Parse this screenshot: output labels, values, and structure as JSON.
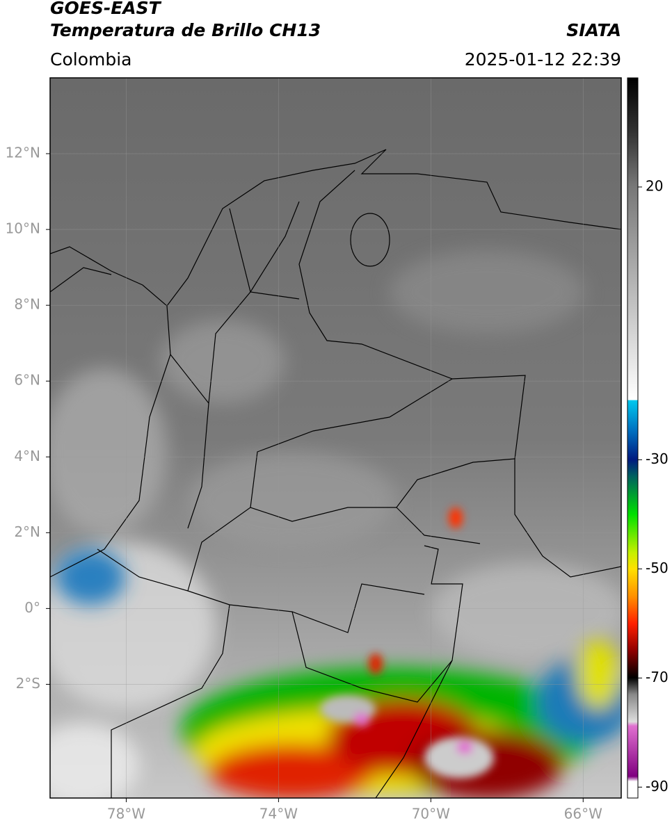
{
  "header": {
    "title": "GOES-EAST",
    "subtitle": "Temperatura de Brillo CH13",
    "source": "SIATA",
    "region": "Colombia",
    "datetime": "2025-01-12 22:39"
  },
  "map": {
    "xlim": [
      -80,
      -65
    ],
    "ylim": [
      -5,
      14
    ],
    "xticks": [
      {
        "value": -78,
        "label": "78°W"
      },
      {
        "value": -74,
        "label": "74°W"
      },
      {
        "value": -70,
        "label": "70°W"
      },
      {
        "value": -66,
        "label": "66°W"
      }
    ],
    "yticks": [
      {
        "value": 12,
        "label": "12°N"
      },
      {
        "value": 10,
        "label": "10°N"
      },
      {
        "value": 8,
        "label": "8°N"
      },
      {
        "value": 6,
        "label": "6°N"
      },
      {
        "value": 4,
        "label": "4°N"
      },
      {
        "value": 2,
        "label": "2°N"
      },
      {
        "value": 0,
        "label": "0°"
      },
      {
        "value": -2,
        "label": "2°S"
      }
    ]
  },
  "colorbar": {
    "lim": [
      -92,
      40
    ],
    "ticks": [
      20,
      -30,
      -50,
      -70,
      -90
    ]
  }
}
